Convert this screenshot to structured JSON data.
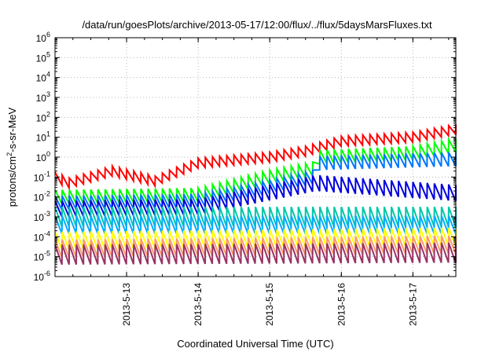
{
  "chart_data": {
    "type": "line",
    "title": "/data/run/goesPlots/archive/2013-05-17/12:00/flux/../flux/5daysMarsFluxes.txt",
    "xlabel": "Coordinated Universal Time (UTC)",
    "ylabel": "protons/cm2-s-sr-MeV",
    "y_scale": "log",
    "ylim": [
      1e-06,
      1000000.0
    ],
    "yticks": [
      -6,
      -5,
      -4,
      -3,
      -2,
      -1,
      0,
      1,
      2,
      3,
      4,
      5,
      6
    ],
    "xlim_days_from_2013_05_12": [
      0,
      5.6
    ],
    "xticks": [
      {
        "label": "2013-5-13",
        "day": 1
      },
      {
        "label": "2013-5-14",
        "day": 2
      },
      {
        "label": "2013-5-15",
        "day": 3
      },
      {
        "label": "2013-5-16",
        "day": 4
      },
      {
        "label": "2013-5-17",
        "day": 5
      }
    ],
    "grid": true,
    "series": [
      {
        "color": "#ff0000",
        "pattern": "sawtooth",
        "log10_base": [
          [
            0,
            -1.0
          ],
          [
            0.2,
            -1.3
          ],
          [
            0.8,
            -0.7
          ],
          [
            1.4,
            -1.2
          ],
          [
            2.0,
            -0.3
          ],
          [
            3.0,
            0.0
          ],
          [
            3.5,
            0.3
          ],
          [
            4.0,
            0.8
          ],
          [
            4.5,
            0.9
          ],
          [
            5.0,
            1.0
          ],
          [
            5.6,
            1.4
          ]
        ],
        "amplitude": 0.25
      },
      {
        "color": "#00ff00",
        "pattern": "sawtooth",
        "log10_base": [
          [
            0,
            -2.0
          ],
          [
            2.0,
            -1.9
          ],
          [
            3.0,
            -1.0
          ],
          [
            3.6,
            -0.6
          ],
          [
            3.65,
            0.0
          ],
          [
            5.0,
            0.2
          ],
          [
            5.6,
            0.6
          ]
        ],
        "amplitude": 0.35
      },
      {
        "color": "#0077ff",
        "pattern": "sawtooth",
        "log10_base": [
          [
            0,
            -2.3
          ],
          [
            2.0,
            -2.2
          ],
          [
            3.0,
            -1.5
          ],
          [
            3.6,
            -1.0
          ],
          [
            3.65,
            -0.3
          ],
          [
            5.6,
            -0.1
          ]
        ],
        "amplitude": 0.35
      },
      {
        "color": "#0000dd",
        "pattern": "sawtooth",
        "log10_base": [
          [
            0,
            -2.6
          ],
          [
            2.0,
            -2.5
          ],
          [
            3.65,
            -1.3
          ],
          [
            5.6,
            -1.8
          ]
        ],
        "amplitude": 0.4
      },
      {
        "color": "#00c8a8",
        "pattern": "sawtooth",
        "log10_base": [
          [
            0,
            -3.0
          ],
          [
            5.6,
            -3.0
          ]
        ],
        "amplitude": 0.5
      },
      {
        "color": "#00aaff",
        "pattern": "sawtooth",
        "log10_base": [
          [
            0,
            -3.4
          ],
          [
            5.6,
            -3.4
          ]
        ],
        "amplitude": 0.45
      },
      {
        "color": "#ffff00",
        "pattern": "sawtooth",
        "log10_base": [
          [
            0,
            -4.2
          ],
          [
            5.6,
            -4.0
          ]
        ],
        "amplitude": 0.45
      },
      {
        "color": "#ff9966",
        "pattern": "sawtooth",
        "log10_base": [
          [
            0,
            -4.6
          ],
          [
            5.6,
            -4.4
          ]
        ],
        "amplitude": 0.45
      },
      {
        "color": "#993366",
        "pattern": "sawtooth",
        "log10_base": [
          [
            0,
            -4.9
          ],
          [
            5.6,
            -4.8
          ]
        ],
        "amplitude": 0.5
      }
    ],
    "sawtooth_period_days": 0.1
  }
}
